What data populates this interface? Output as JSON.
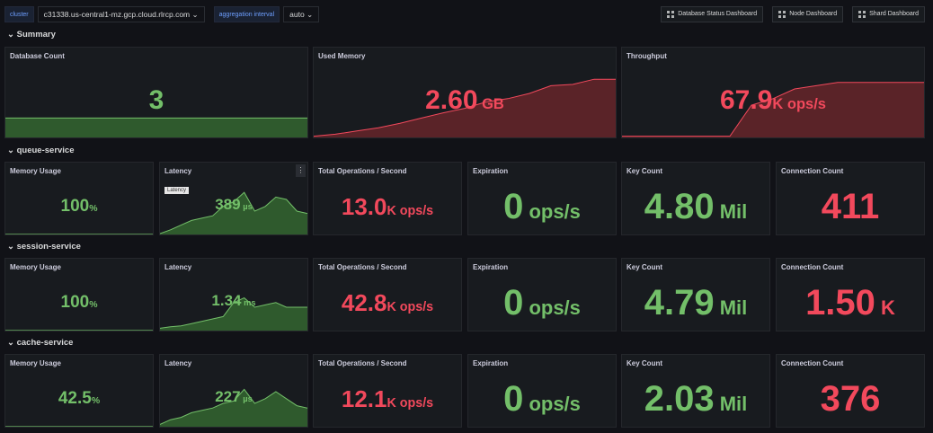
{
  "toolbar": {
    "cluster_label": "cluster",
    "cluster_value": "c31338.us-central1-mz.gcp.cloud.rlrcp.com",
    "interval_label": "aggregation interval",
    "interval_value": "auto",
    "links": [
      "Database Status Dashboard",
      "Node Dashboard",
      "Shard Dashboard"
    ]
  },
  "colors": {
    "green": "#73bf69",
    "red": "#f2495c",
    "panel_bg": "#181b1f",
    "page_bg": "#111217"
  },
  "summary": {
    "title": "Summary",
    "panels": [
      {
        "title": "Database Count",
        "value": "3",
        "unit": "",
        "color": "green",
        "spark": [
          0.3,
          0.3,
          0.3,
          0.3,
          0.3,
          0.3,
          0.3,
          0.3
        ]
      },
      {
        "title": "Used Memory",
        "value": "2.60",
        "unit": " GB",
        "color": "red",
        "spark": [
          0.02,
          0.05,
          0.1,
          0.15,
          0.22,
          0.3,
          0.38,
          0.45,
          0.55,
          0.6,
          0.68,
          0.8,
          0.82,
          0.9,
          0.9
        ]
      },
      {
        "title": "Throughput",
        "value": "67.9",
        "unit": "K ops/s",
        "color": "red",
        "spark": [
          0.02,
          0.02,
          0.02,
          0.02,
          0.02,
          0.02,
          0.5,
          0.6,
          0.75,
          0.8,
          0.85,
          0.85,
          0.85,
          0.85,
          0.85
        ]
      }
    ]
  },
  "sections": [
    {
      "title": "queue-service",
      "panels": [
        {
          "title": "Memory Usage",
          "value": "100",
          "unit": "%",
          "color": "green",
          "spark": [
            0.02,
            0.02
          ]
        },
        {
          "title": "Latency",
          "value": "389",
          "unit": " µs",
          "color": "green",
          "tooltip": "Latency",
          "spark": [
            0.02,
            0.1,
            0.2,
            0.3,
            0.35,
            0.4,
            0.6,
            0.7,
            0.9,
            0.5,
            0.6,
            0.8,
            0.75,
            0.5,
            0.45
          ]
        },
        {
          "title": "Total Operations / Second",
          "value": "13.0",
          "unit": "K ops/s",
          "color": "red"
        },
        {
          "title": "Expiration",
          "value": "0",
          "unit": " ops/s",
          "color": "green"
        },
        {
          "title": "Key Count",
          "value": "4.80",
          "unit": " Mil",
          "color": "green"
        },
        {
          "title": "Connection Count",
          "value": "411",
          "unit": "",
          "color": "red"
        }
      ]
    },
    {
      "title": "session-service",
      "panels": [
        {
          "title": "Memory Usage",
          "value": "100",
          "unit": "%",
          "color": "green",
          "spark": [
            0.02,
            0.02
          ]
        },
        {
          "title": "Latency",
          "value": "1.34",
          "unit": " ms",
          "color": "green",
          "spark": [
            0.05,
            0.08,
            0.1,
            0.15,
            0.2,
            0.25,
            0.3,
            0.6,
            0.7,
            0.5,
            0.55,
            0.6,
            0.5,
            0.5,
            0.5
          ]
        },
        {
          "title": "Total Operations / Second",
          "value": "42.8",
          "unit": "K ops/s",
          "color": "red"
        },
        {
          "title": "Expiration",
          "value": "0",
          "unit": " ops/s",
          "color": "green"
        },
        {
          "title": "Key Count",
          "value": "4.79",
          "unit": " Mil",
          "color": "green"
        },
        {
          "title": "Connection Count",
          "value": "1.50",
          "unit": " K",
          "color": "red"
        }
      ]
    },
    {
      "title": "cache-service",
      "panels": [
        {
          "title": "Memory Usage",
          "value": "42.5",
          "unit": "%",
          "color": "green",
          "spark": [
            0.02,
            0.02
          ]
        },
        {
          "title": "Latency",
          "value": "227",
          "unit": " µs",
          "color": "green",
          "spark": [
            0.05,
            0.15,
            0.2,
            0.3,
            0.35,
            0.4,
            0.5,
            0.55,
            0.8,
            0.5,
            0.6,
            0.75,
            0.6,
            0.45,
            0.4
          ]
        },
        {
          "title": "Total Operations / Second",
          "value": "12.1",
          "unit": "K ops/s",
          "color": "red"
        },
        {
          "title": "Expiration",
          "value": "0",
          "unit": " ops/s",
          "color": "green"
        },
        {
          "title": "Key Count",
          "value": "2.03",
          "unit": " Mil",
          "color": "green"
        },
        {
          "title": "Connection Count",
          "value": "376",
          "unit": "",
          "color": "red"
        }
      ]
    }
  ]
}
